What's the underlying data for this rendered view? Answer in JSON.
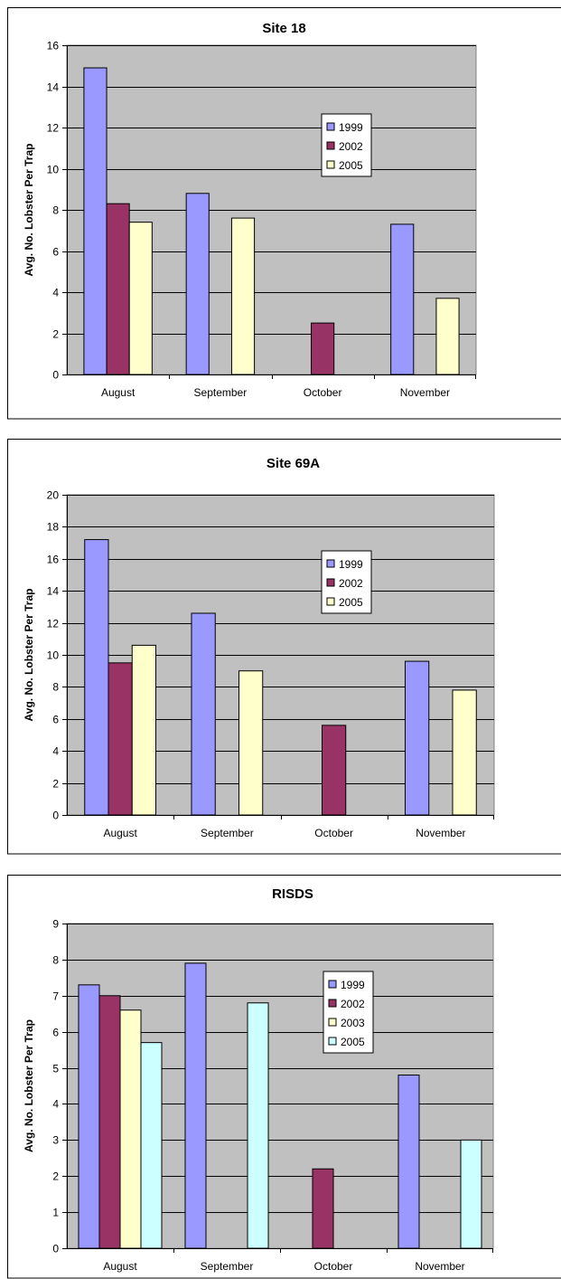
{
  "colors": {
    "plot_area": "#c0c0c0",
    "gridline": "#000000",
    "series": {
      "1999": "#9999ff",
      "2002": "#993366",
      "2003": "#ffffcc",
      "2005": "#ccffff"
    },
    "series_2005_alt": "#ffffcc"
  },
  "chart_data": [
    {
      "type": "bar",
      "title": "Site 18",
      "ylabel": "Avg. No. Lobster Per Trap",
      "xlabel": "",
      "categories": [
        "August",
        "September",
        "October",
        "November"
      ],
      "ylim": [
        0,
        16
      ],
      "yticks": [
        "0",
        "2",
        "4",
        "6",
        "8",
        "10",
        "12",
        "14",
        "16"
      ],
      "grid": true,
      "legend": "upper-middle",
      "series": [
        {
          "name": "1999",
          "color": "#9999ff",
          "values": [
            14.9,
            8.8,
            null,
            7.3
          ]
        },
        {
          "name": "2002",
          "color": "#993366",
          "values": [
            8.3,
            null,
            2.5,
            null
          ]
        },
        {
          "name": "2005",
          "color": "#ffffcc",
          "values": [
            7.4,
            7.6,
            null,
            3.7
          ]
        }
      ]
    },
    {
      "type": "bar",
      "title": "Site 69A",
      "ylabel": "Avg. No. Lobster Per Trap",
      "xlabel": "",
      "categories": [
        "August",
        "September",
        "October",
        "November"
      ],
      "ylim": [
        0,
        20
      ],
      "yticks": [
        "0",
        "2",
        "4",
        "6",
        "8",
        "10",
        "12",
        "14",
        "16",
        "18",
        "20"
      ],
      "grid": true,
      "legend": "upper-middle",
      "series": [
        {
          "name": "1999",
          "color": "#9999ff",
          "values": [
            17.2,
            12.6,
            null,
            9.6
          ]
        },
        {
          "name": "2002",
          "color": "#993366",
          "values": [
            9.5,
            null,
            5.6,
            null
          ]
        },
        {
          "name": "2005",
          "color": "#ffffcc",
          "values": [
            10.6,
            9.0,
            null,
            7.8
          ]
        }
      ]
    },
    {
      "type": "bar",
      "title": "RISDS",
      "ylabel": "Avg. No. Lobster Per Trap",
      "xlabel": "",
      "categories": [
        "August",
        "September",
        "October",
        "November"
      ],
      "ylim": [
        0,
        9
      ],
      "yticks": [
        "0",
        "1",
        "2",
        "3",
        "4",
        "5",
        "6",
        "7",
        "8",
        "9"
      ],
      "grid": true,
      "legend": "upper-middle",
      "series": [
        {
          "name": "1999",
          "color": "#9999ff",
          "values": [
            7.3,
            7.9,
            null,
            4.8
          ]
        },
        {
          "name": "2002",
          "color": "#993366",
          "values": [
            7.0,
            null,
            2.2,
            null
          ]
        },
        {
          "name": "2003",
          "color": "#ffffcc",
          "values": [
            6.6,
            null,
            null,
            null
          ]
        },
        {
          "name": "2005",
          "color": "#ccffff",
          "values": [
            5.7,
            6.8,
            null,
            3.0
          ]
        }
      ]
    }
  ]
}
